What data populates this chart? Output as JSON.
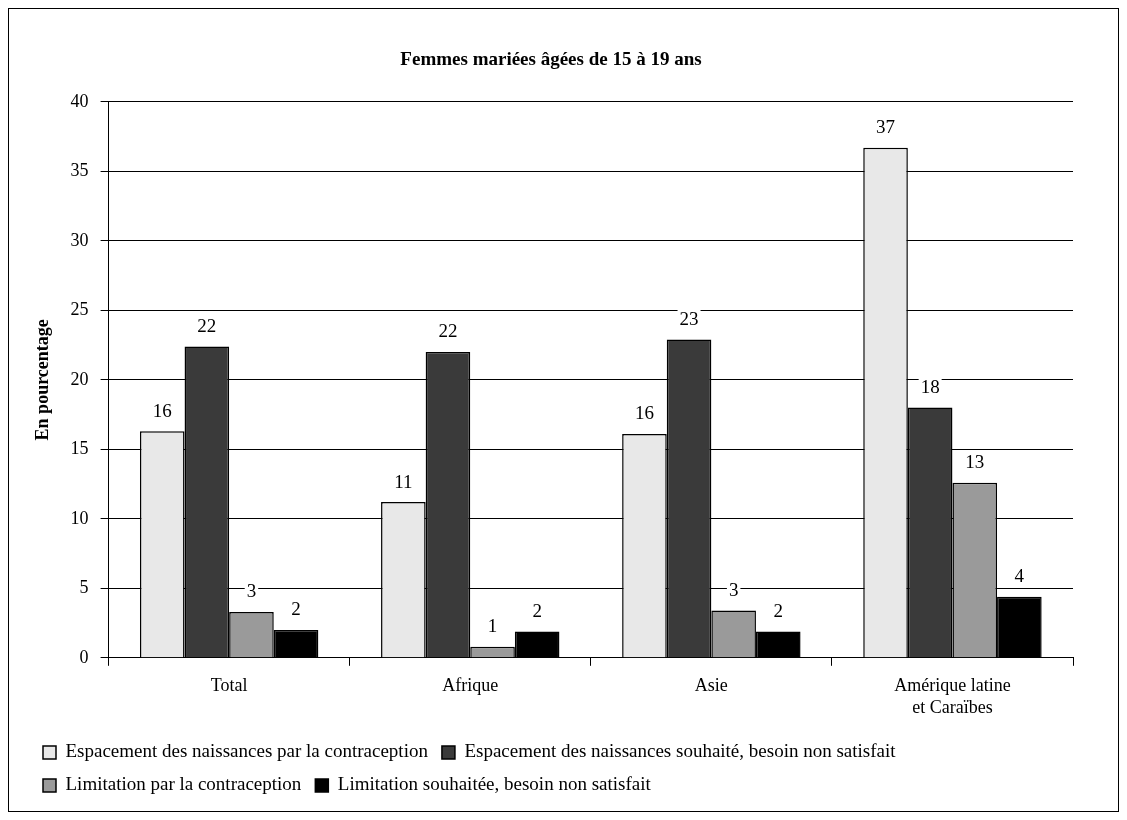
{
  "chart_data": {
    "type": "bar",
    "title": "Femmes mariées âgées de 15 à 19 ans",
    "ylabel": "En pourcentage",
    "categories": [
      "Total",
      "Afrique",
      "Asie",
      "Amérique latine\net Caraïbes"
    ],
    "series": [
      {
        "name": "Espacement des naissances par la contraception",
        "color": "#e8e8e8",
        "values": [
          16.3,
          11.2,
          16.1,
          36.7
        ],
        "value_labels": [
          "16",
          "11",
          "16",
          "37"
        ]
      },
      {
        "name": "Espacement des naissances souhaité, besoin non satisfait",
        "color": "#3a3a3a",
        "values": [
          22.4,
          22.0,
          22.9,
          18.0
        ],
        "value_labels": [
          "22",
          "22",
          "23",
          "18"
        ]
      },
      {
        "name": "Limitation par la contraception",
        "color": "#9a9a9a",
        "values": [
          3.3,
          0.8,
          3.4,
          12.6
        ],
        "value_labels": [
          "3",
          "1",
          "3",
          "13"
        ]
      },
      {
        "name": "Limitation souhaitée, besoin non satisfait",
        "color": "#000000",
        "values": [
          2.0,
          1.9,
          1.9,
          4.4
        ],
        "value_labels": [
          "2",
          "2",
          "2",
          "4"
        ]
      }
    ],
    "ylim": [
      0,
      40
    ],
    "yticks": [
      0,
      5,
      10,
      15,
      20,
      25,
      30,
      35,
      40
    ],
    "grid": "y",
    "legend": "bottom"
  }
}
